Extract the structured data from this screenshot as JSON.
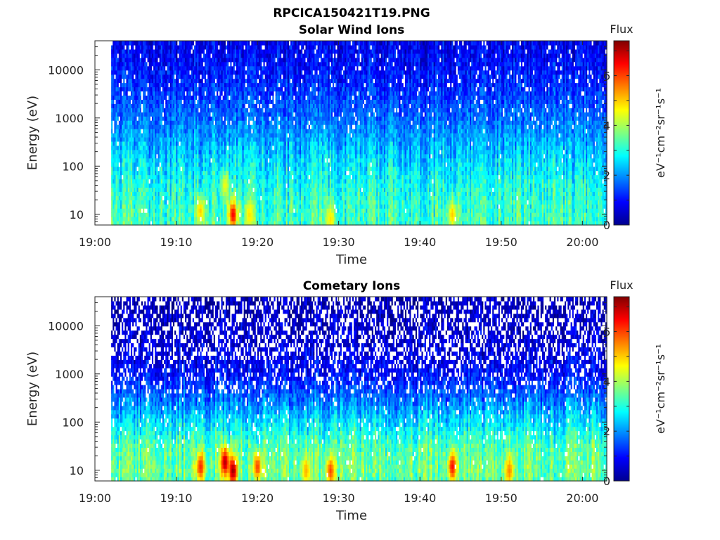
{
  "figure_title": "RPCICA150421T19.PNG",
  "xlabel": "Time",
  "ylabel": "Energy (eV)",
  "colorbar": {
    "title": "Flux",
    "label": "eV⁻¹cm⁻²sr⁻¹s⁻¹",
    "range": [
      0,
      7.4
    ],
    "ticks": [
      0,
      2,
      4,
      6
    ],
    "colormap": "jet"
  },
  "chart_data": [
    {
      "type": "heatmap",
      "title": "Solar Wind Ions",
      "xlabel": "Time",
      "ylabel": "Energy (eV)",
      "x_ticks": [
        "19:00",
        "19:10",
        "19:20",
        "19:30",
        "19:40",
        "19:50",
        "20:00"
      ],
      "y_ticks": [
        "10",
        "100",
        "1000",
        "10000"
      ],
      "x_range": [
        "19:00",
        "20:03"
      ],
      "data_start": "19:02",
      "y_range": [
        6,
        40000
      ],
      "y_scale": "log",
      "colorbar_range": [
        0,
        7.4
      ],
      "profile": {
        "description": "flux vs energy per time column (approx.)",
        "energy_points": [
          6,
          10,
          30,
          100,
          300,
          1000,
          5000,
          40000
        ],
        "flux_points": [
          3.2,
          3.2,
          3.0,
          2.6,
          2.2,
          1.7,
          1.2,
          0.8
        ]
      },
      "hotspots": [
        {
          "time": "19:13",
          "energy": 12,
          "flux": 5.0
        },
        {
          "time": "19:16",
          "energy": 40,
          "flux": 4.5
        },
        {
          "time": "19:17",
          "energy": 10,
          "flux": 6.5
        },
        {
          "time": "19:19",
          "energy": 10,
          "flux": 4.8
        },
        {
          "time": "19:29",
          "energy": 8,
          "flux": 4.8
        },
        {
          "time": "19:44",
          "energy": 10,
          "flux": 5.0
        }
      ]
    },
    {
      "type": "heatmap",
      "title": "Cometary Ions",
      "xlabel": "Time",
      "ylabel": "Energy (eV)",
      "x_ticks": [
        "19:00",
        "19:10",
        "19:20",
        "19:30",
        "19:40",
        "19:50",
        "20:00"
      ],
      "y_ticks": [
        "10",
        "100",
        "1000",
        "10000"
      ],
      "x_range": [
        "19:00",
        "20:03"
      ],
      "data_start": "19:02",
      "y_range": [
        6,
        40000
      ],
      "y_scale": "log",
      "colorbar_range": [
        0,
        7.4
      ],
      "profile": {
        "description": "flux vs energy per time column (approx.)",
        "energy_points": [
          6,
          10,
          30,
          100,
          300,
          1000,
          5000,
          40000
        ],
        "flux_points": [
          3.4,
          3.6,
          3.4,
          2.6,
          1.8,
          1.0,
          0.6,
          0.4
        ]
      },
      "hotspots": [
        {
          "time": "19:13",
          "energy": 12,
          "flux": 6.2
        },
        {
          "time": "19:16",
          "energy": 15,
          "flux": 7.0
        },
        {
          "time": "19:17",
          "energy": 10,
          "flux": 7.2
        },
        {
          "time": "19:20",
          "energy": 12,
          "flux": 6.0
        },
        {
          "time": "19:26",
          "energy": 10,
          "flux": 5.2
        },
        {
          "time": "19:29",
          "energy": 10,
          "flux": 6.0
        },
        {
          "time": "19:44",
          "energy": 12,
          "flux": 6.4
        },
        {
          "time": "19:51",
          "energy": 10,
          "flux": 5.5
        }
      ]
    }
  ]
}
